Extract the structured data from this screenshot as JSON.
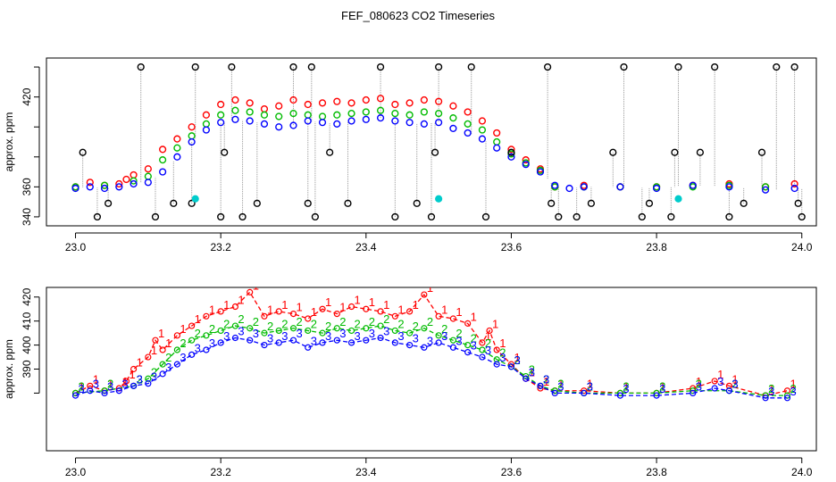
{
  "chart_data": {
    "title": "FEF_080623  CO2 Timeseries",
    "colors": {
      "ch1": "#ff0000",
      "ch2": "#00bb00",
      "ch3": "#0000ff",
      "raw": "#000000",
      "flag": "#00cccc",
      "stem": "#999999"
    },
    "panels": [
      {
        "type": "scatter",
        "ylabel": "approx. ppm",
        "xlim": [
          22.96,
          24.02
        ],
        "ylim": [
          334,
          446
        ],
        "x_ticks": [
          "23.0",
          "23.2",
          "23.4",
          "23.6",
          "23.8",
          "24.0"
        ],
        "x_tick_values": [
          23.0,
          23.2,
          23.4,
          23.6,
          23.8,
          24.0
        ],
        "y_ticks": [
          "340",
          "360",
          "380",
          "400",
          "420",
          "440"
        ],
        "y_tick_values": [
          340,
          360,
          380,
          400,
          420,
          440
        ],
        "y_tick_shown": [
          "340",
          "360",
          "420"
        ],
        "series": [
          {
            "name": "ch1",
            "color": "#ff0000",
            "x": [
              23.0,
              23.02,
              23.04,
              23.06,
              23.07,
              23.08,
              23.1,
              23.12,
              23.14,
              23.16,
              23.18,
              23.2,
              23.22,
              23.24,
              23.26,
              23.28,
              23.3,
              23.32,
              23.34,
              23.36,
              23.38,
              23.4,
              23.42,
              23.44,
              23.46,
              23.48,
              23.5,
              23.52,
              23.54,
              23.56,
              23.58,
              23.6,
              23.62,
              23.64,
              23.66,
              23.7,
              23.75,
              23.8,
              23.85,
              23.9,
              23.95,
              23.99
            ],
            "y": [
              360,
              363,
              361,
              362,
              365,
              368,
              372,
              385,
              392,
              400,
              408,
              415,
              418,
              416,
              412,
              414,
              418,
              415,
              416,
              417,
              416,
              418,
              419,
              415,
              416,
              418,
              417,
              414,
              410,
              404,
              396,
              385,
              378,
              372,
              360,
              361,
              360,
              360,
              361,
              362,
              360,
              362
            ]
          },
          {
            "name": "ch2",
            "color": "#00bb00",
            "x": [
              23.0,
              23.04,
              23.08,
              23.1,
              23.12,
              23.14,
              23.16,
              23.18,
              23.2,
              23.22,
              23.24,
              23.26,
              23.28,
              23.3,
              23.32,
              23.34,
              23.36,
              23.38,
              23.4,
              23.42,
              23.44,
              23.46,
              23.48,
              23.5,
              23.52,
              23.54,
              23.56,
              23.58,
              23.6,
              23.62,
              23.64,
              23.66,
              23.7,
              23.75,
              23.8,
              23.85,
              23.9,
              23.95
            ],
            "y": [
              360,
              361,
              364,
              367,
              378,
              386,
              394,
              402,
              408,
              411,
              410,
              408,
              407,
              409,
              408,
              407,
              408,
              409,
              410,
              411,
              409,
              408,
              410,
              409,
              406,
              402,
              398,
              390,
              382,
              376,
              371,
              360,
              360,
              360,
              360,
              360,
              361,
              360
            ]
          },
          {
            "name": "ch3",
            "color": "#0000ff",
            "x": [
              23.0,
              23.02,
              23.04,
              23.06,
              23.08,
              23.1,
              23.12,
              23.14,
              23.16,
              23.18,
              23.2,
              23.22,
              23.24,
              23.26,
              23.28,
              23.3,
              23.32,
              23.34,
              23.36,
              23.38,
              23.4,
              23.42,
              23.44,
              23.46,
              23.48,
              23.5,
              23.52,
              23.54,
              23.56,
              23.58,
              23.6,
              23.62,
              23.64,
              23.66,
              23.68,
              23.7,
              23.75,
              23.8,
              23.85,
              23.9,
              23.95,
              23.99
            ],
            "y": [
              359,
              360,
              359,
              360,
              362,
              363,
              370,
              380,
              390,
              398,
              403,
              405,
              404,
              402,
              400,
              401,
              404,
              403,
              402,
              404,
              405,
              406,
              404,
              403,
              402,
              403,
              399,
              396,
              392,
              386,
              380,
              375,
              370,
              361,
              359,
              360,
              360,
              359,
              361,
              360,
              358,
              359
            ]
          },
          {
            "name": "raw",
            "color": "#000000",
            "x": [
              23.01,
              23.03,
              23.045,
              23.09,
              23.11,
              23.135,
              23.16,
              23.165,
              23.2,
              23.205,
              23.215,
              23.23,
              23.25,
              23.3,
              23.32,
              23.325,
              23.33,
              23.35,
              23.375,
              23.42,
              23.44,
              23.47,
              23.49,
              23.495,
              23.5,
              23.545,
              23.565,
              23.6,
              23.65,
              23.655,
              23.665,
              23.69,
              23.71,
              23.74,
              23.755,
              23.78,
              23.79,
              23.82,
              23.825,
              23.83,
              23.86,
              23.88,
              23.9,
              23.92,
              23.945,
              23.965,
              23.99,
              23.995,
              24.0
            ],
            "y": [
              383,
              340,
              349,
              440,
              340,
              349,
              349,
              440,
              340,
              383,
              440,
              340,
              349,
              440,
              349,
              440,
              340,
              383,
              349,
              440,
              340,
              349,
              340,
              383,
              440,
              440,
              340,
              383,
              440,
              349,
              340,
              340,
              349,
              383,
              440,
              340,
              349,
              340,
              383,
              440,
              383,
              440,
              340,
              349,
              383,
              440,
              440,
              349,
              340
            ]
          },
          {
            "name": "flag",
            "color": "#00cccc",
            "x": [
              23.165,
              23.5,
              23.83
            ],
            "y": [
              352,
              352,
              352
            ]
          }
        ]
      },
      {
        "type": "line",
        "ylabel": "approx. ppm",
        "xlim": [
          22.96,
          24.02
        ],
        "ylim": [
          356,
          424
        ],
        "x_ticks": [
          "23.0",
          "23.2",
          "23.4",
          "23.6",
          "23.8",
          "24.0"
        ],
        "x_tick_values": [
          23.0,
          23.2,
          23.4,
          23.6,
          23.8,
          24.0
        ],
        "y_ticks": [
          "380",
          "390",
          "400",
          "410",
          "420"
        ],
        "y_tick_values": [
          380,
          390,
          400,
          410,
          420
        ],
        "y_tick_shown": [
          "360",
          "390",
          "400",
          "410",
          "420"
        ],
        "series": [
          {
            "name": "1",
            "color": "#ff0000",
            "x": [
              23.0,
              23.02,
              23.04,
              23.06,
              23.07,
              23.08,
              23.1,
              23.11,
              23.12,
              23.14,
              23.16,
              23.18,
              23.2,
              23.22,
              23.24,
              23.26,
              23.28,
              23.3,
              23.32,
              23.34,
              23.36,
              23.38,
              23.4,
              23.42,
              23.44,
              23.46,
              23.48,
              23.5,
              23.52,
              23.54,
              23.56,
              23.57,
              23.58,
              23.6,
              23.62,
              23.64,
              23.66,
              23.7,
              23.75,
              23.8,
              23.85,
              23.88,
              23.9,
              23.95,
              23.98
            ],
            "y": [
              380,
              383,
              381,
              382,
              385,
              390,
              395,
              402,
              398,
              404,
              408,
              412,
              414,
              416,
              422,
              412,
              414,
              413,
              411,
              415,
              413,
              416,
              415,
              414,
              412,
              414,
              421,
              412,
              411,
              409,
              401,
              406,
              398,
              392,
              386,
              382,
              381,
              381,
              380,
              380,
              382,
              385,
              383,
              379,
              381
            ]
          },
          {
            "name": "2",
            "color": "#00bb00",
            "x": [
              23.0,
              23.04,
              23.08,
              23.1,
              23.12,
              23.14,
              23.16,
              23.18,
              23.2,
              23.22,
              23.24,
              23.26,
              23.28,
              23.3,
              23.32,
              23.34,
              23.36,
              23.38,
              23.4,
              23.42,
              23.44,
              23.46,
              23.48,
              23.5,
              23.52,
              23.54,
              23.56,
              23.58,
              23.6,
              23.62,
              23.64,
              23.66,
              23.7,
              23.75,
              23.8,
              23.85,
              23.9,
              23.95,
              23.98
            ],
            "y": [
              380,
              381,
              383,
              386,
              392,
              398,
              402,
              404,
              406,
              408,
              407,
              405,
              406,
              407,
              406,
              405,
              407,
              406,
              407,
              408,
              406,
              405,
              407,
              404,
              402,
              400,
              398,
              394,
              391,
              387,
              383,
              381,
              380,
              380,
              380,
              381,
              381,
              379,
              379
            ]
          },
          {
            "name": "3",
            "color": "#0000ff",
            "x": [
              23.0,
              23.02,
              23.04,
              23.06,
              23.08,
              23.1,
              23.12,
              23.14,
              23.16,
              23.18,
              23.2,
              23.22,
              23.24,
              23.26,
              23.28,
              23.3,
              23.32,
              23.34,
              23.36,
              23.38,
              23.4,
              23.42,
              23.44,
              23.46,
              23.48,
              23.5,
              23.52,
              23.54,
              23.56,
              23.58,
              23.6,
              23.62,
              23.64,
              23.66,
              23.7,
              23.75,
              23.8,
              23.85,
              23.88,
              23.9,
              23.95,
              23.98
            ],
            "y": [
              379,
              381,
              380,
              381,
              383,
              384,
              388,
              392,
              396,
              398,
              401,
              403,
              402,
              400,
              401,
              402,
              399,
              401,
              402,
              401,
              402,
              403,
              401,
              400,
              399,
              401,
              399,
              397,
              395,
              392,
              391,
              386,
              383,
              380,
              380,
              379,
              379,
              380,
              382,
              381,
              378,
              378
            ]
          }
        ]
      }
    ]
  }
}
